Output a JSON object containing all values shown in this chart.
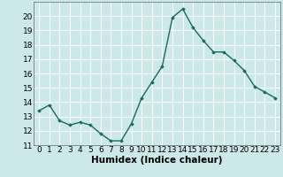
{
  "x": [
    0,
    1,
    2,
    3,
    4,
    5,
    6,
    7,
    8,
    9,
    10,
    11,
    12,
    13,
    14,
    15,
    16,
    17,
    18,
    19,
    20,
    21,
    22,
    23
  ],
  "y": [
    13.4,
    13.8,
    12.7,
    12.4,
    12.6,
    12.4,
    11.8,
    11.3,
    11.3,
    12.5,
    14.3,
    15.4,
    16.5,
    19.9,
    20.5,
    19.2,
    18.3,
    17.5,
    17.5,
    16.9,
    16.2,
    15.1,
    14.7,
    14.3
  ],
  "line_color": "#1a6b5a",
  "marker": "D",
  "marker_size": 1.8,
  "bg_color": "#cce8e8",
  "grid_color": "#ffffff",
  "xlabel": "Humidex (Indice chaleur)",
  "ylim": [
    11,
    21
  ],
  "xlim": [
    -0.5,
    23.5
  ],
  "yticks": [
    11,
    12,
    13,
    14,
    15,
    16,
    17,
    18,
    19,
    20
  ],
  "xticks": [
    0,
    1,
    2,
    3,
    4,
    5,
    6,
    7,
    8,
    9,
    10,
    11,
    12,
    13,
    14,
    15,
    16,
    17,
    18,
    19,
    20,
    21,
    22,
    23
  ],
  "xlabel_fontsize": 7.5,
  "tick_fontsize": 6.5,
  "line_width": 1.0
}
